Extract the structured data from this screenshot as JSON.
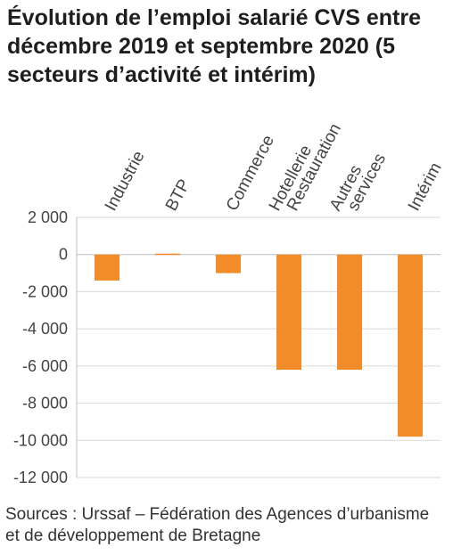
{
  "title": "Évolution de l’emploi salarié CVS entre décembre 2019 et septembre 2020 (5 secteurs d’activité et intérim)",
  "source": "Sources : Urssaf – Fédération des Agences d’urbanisme et de développement de Bretagne",
  "colors": {
    "bar": "#f28c28",
    "grid": "#d9d9d9",
    "axis": "#bfbfbf"
  },
  "chart_data": {
    "type": "bar",
    "categories": [
      [
        "Industrie"
      ],
      [
        "BTP"
      ],
      [
        "Commerce"
      ],
      [
        "Hotellerie",
        "Restauration"
      ],
      [
        "Autres",
        "services"
      ],
      [
        "Intérim"
      ]
    ],
    "values": [
      -1400,
      50,
      -1000,
      -6200,
      -6200,
      -9800
    ],
    "ylim": [
      -12000,
      2000
    ],
    "yticks": [
      2000,
      0,
      -2000,
      -4000,
      -6000,
      -8000,
      -10000,
      -12000
    ],
    "ytick_labels": [
      "2 000",
      "0",
      "-2 000",
      "-4 000",
      "-6 000",
      "-8 000",
      "-10 000",
      "-12 000"
    ],
    "grid": true,
    "xlabel": "",
    "ylabel": ""
  }
}
